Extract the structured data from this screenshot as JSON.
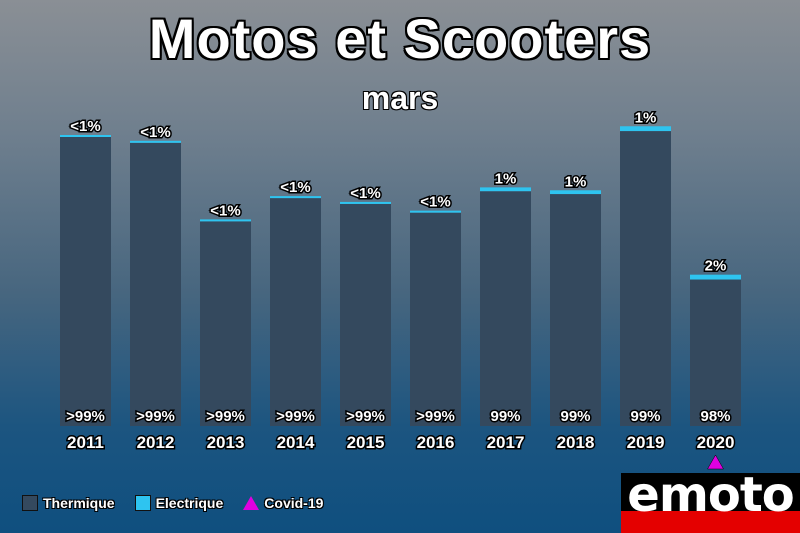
{
  "title": "Motos et Scooters",
  "subtitle": "mars",
  "chart_data": {
    "type": "bar",
    "stacked": true,
    "title": "Motos et Scooters",
    "subtitle": "mars",
    "categories": [
      "2011",
      "2012",
      "2013",
      "2014",
      "2015",
      "2016",
      "2017",
      "2018",
      "2019",
      "2020"
    ],
    "series": [
      {
        "name": "Thermique",
        "color": "#34495e",
        "share_labels": [
          ">99%",
          ">99%",
          ">99%",
          ">99%",
          ">99%",
          ">99%",
          "99%",
          "99%",
          "99%",
          "98%"
        ]
      },
      {
        "name": "Electrique",
        "color": "#2ec4f0",
        "share_labels": [
          "<1%",
          "<1%",
          "<1%",
          "<1%",
          "<1%",
          "<1%",
          "1%",
          "1%",
          "1%",
          "2%"
        ]
      }
    ],
    "relative_total": [
      1.0,
      0.98,
      0.71,
      0.79,
      0.77,
      0.74,
      0.82,
      0.81,
      1.03,
      0.52
    ],
    "electric_share": [
      0.002,
      0.002,
      0.002,
      0.002,
      0.002,
      0.002,
      0.01,
      0.01,
      0.01,
      0.02
    ],
    "annotations": [
      {
        "category": "2020",
        "marker": "triangle",
        "color": "#e000e0",
        "label": "Covid-19"
      }
    ],
    "legend": [
      {
        "label": "Thermique",
        "color": "#34495e",
        "shape": "square"
      },
      {
        "label": "Electrique",
        "color": "#2ec4f0",
        "shape": "square"
      },
      {
        "label": "Covid-19",
        "color": "#e000e0",
        "shape": "triangle"
      }
    ],
    "legend_position": "bottom-left",
    "grid": false
  },
  "logo": {
    "text": "emoto"
  }
}
